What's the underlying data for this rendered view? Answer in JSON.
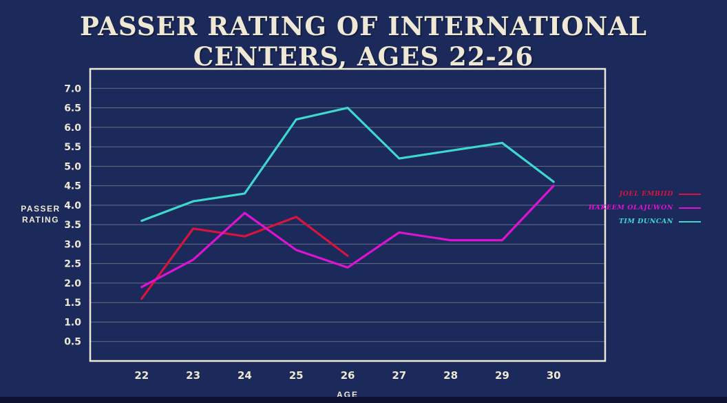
{
  "title": "PASSER RATING OF INTERNATIONAL CENTERS, AGES 22-26",
  "colors": {
    "background": "#1b2a5a",
    "frame": "#efe8d4",
    "grid": "rgba(240,234,216,0.35)",
    "text": "#efe8d4",
    "footer_strip": "#0c1230"
  },
  "chart_data": {
    "type": "line",
    "title": "PASSER RATING OF INTERNATIONAL CENTERS, AGES 22-26",
    "xlabel": "AGE",
    "ylabel": "PASSER\nRATING",
    "xlim": [
      21,
      31
    ],
    "ylim": [
      0,
      7.5
    ],
    "xticks": [
      22,
      23,
      24,
      25,
      26,
      27,
      28,
      29,
      30
    ],
    "yticks": [
      0.5,
      1.0,
      1.5,
      2.0,
      2.5,
      3.0,
      3.5,
      4.0,
      4.5,
      5.0,
      5.5,
      6.0,
      6.5,
      7.0
    ],
    "grid": "horizontal",
    "legend_position": "right-outside",
    "series": [
      {
        "name": "JOEL EMBIID",
        "color": "#d9143c",
        "x": [
          22,
          23,
          24,
          25,
          26
        ],
        "values": [
          1.6,
          3.4,
          3.2,
          3.7,
          2.7
        ]
      },
      {
        "name": "HAKEEM OLAJUWON",
        "color": "#de13d2",
        "x": [
          22,
          23,
          24,
          25,
          26,
          27,
          28,
          29,
          30
        ],
        "values": [
          1.9,
          2.6,
          3.8,
          2.85,
          2.4,
          3.3,
          3.1,
          3.1,
          4.5
        ]
      },
      {
        "name": "TIM DUNCAN",
        "color": "#3fd8cf",
        "x": [
          22,
          23,
          24,
          25,
          26,
          27,
          28,
          29,
          30
        ],
        "values": [
          3.6,
          4.1,
          4.3,
          6.2,
          6.5,
          5.2,
          5.4,
          5.6,
          4.6
        ]
      }
    ]
  }
}
